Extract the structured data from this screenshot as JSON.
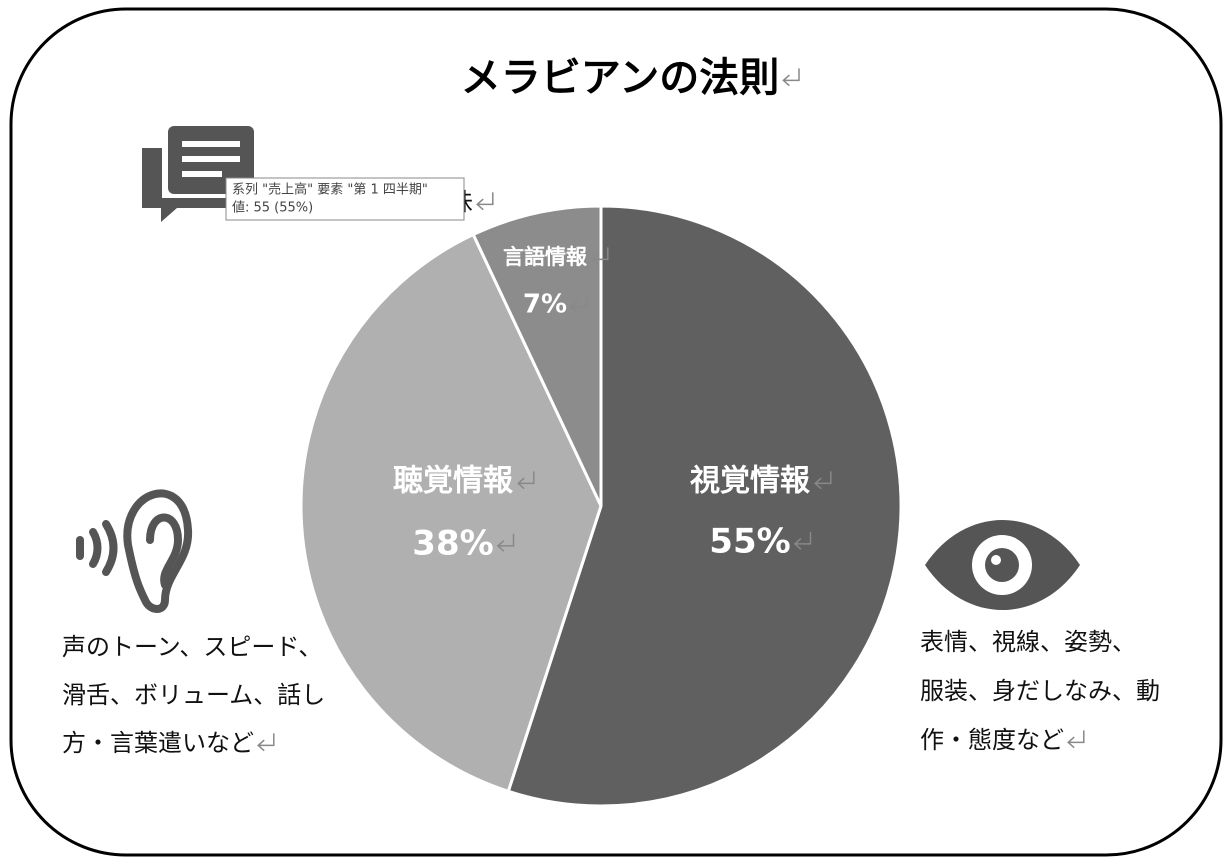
{
  "chart_data": {
    "type": "pie",
    "title": "メラビアンの法則",
    "categories": [
      "視覚情報",
      "聴覚情報",
      "言語情報"
    ],
    "values": [
      55,
      38,
      7
    ],
    "value_labels": [
      "55%",
      "38%",
      "7%"
    ],
    "colors": [
      "#606060",
      "#b0b0b0",
      "#8c8c8c"
    ],
    "annotations": [
      {
        "lines": [
          "話の内容、意味"
        ]
      },
      {
        "lines": [
          "声のトーン、スピード、",
          "滑舌、ボリューム、話し",
          "方・言葉遣いなど"
        ]
      },
      {
        "lines": [
          "表情、視線、姿勢、",
          "服装、身だしなみ、動",
          "作・態度など"
        ]
      }
    ],
    "tooltip": {
      "lines": [
        "系列 \"売上高\" 要素 \"第 1 四半期\"",
        "値: 55 (55%)"
      ]
    }
  }
}
